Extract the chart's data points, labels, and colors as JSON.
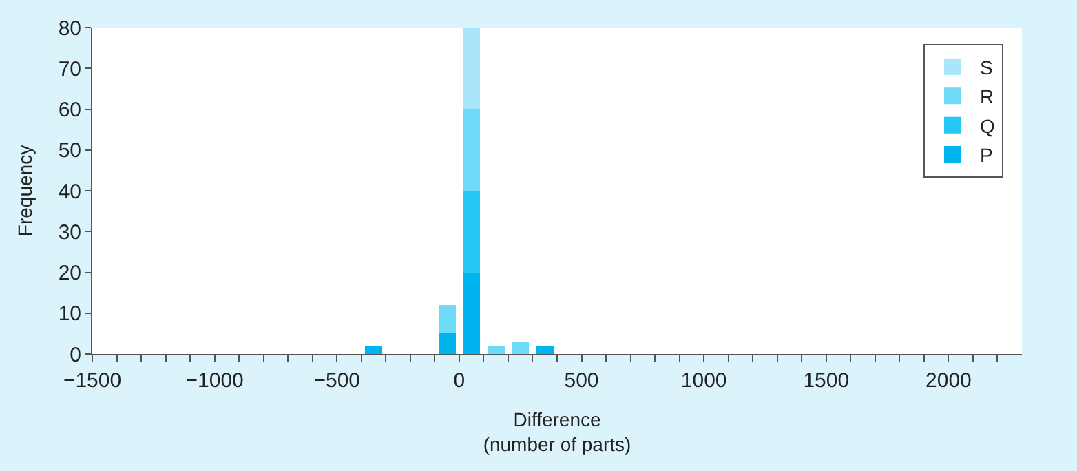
{
  "chart_data": {
    "type": "bar",
    "xlabel": "Difference\n(number of parts)",
    "ylabel": "Frequency",
    "x": [
      -350,
      -50,
      50,
      150,
      250,
      350
    ],
    "stacked": true,
    "series": [
      {
        "name": "P",
        "color": "#00b5ef",
        "values": [
          2,
          5,
          20,
          0,
          0,
          2
        ]
      },
      {
        "name": "Q",
        "color": "#25c8f5",
        "values": [
          0,
          0,
          20,
          0,
          0,
          0
        ]
      },
      {
        "name": "R",
        "color": "#6fdaf7",
        "values": [
          0,
          7,
          20,
          2,
          3,
          0
        ]
      },
      {
        "name": "S",
        "color": "#aae6f9",
        "values": [
          0,
          0,
          20,
          0,
          0,
          0
        ]
      }
    ],
    "xlim": [
      -1500,
      2300
    ],
    "ylim": [
      0,
      80
    ],
    "xticks": [
      {
        "value": -1500,
        "label": "−1500"
      },
      {
        "value": -1400,
        "label": null
      },
      {
        "value": -1300,
        "label": null
      },
      {
        "value": -1200,
        "label": null
      },
      {
        "value": -1100,
        "label": null
      },
      {
        "value": -1000,
        "label": "−1000"
      },
      {
        "value": -900,
        "label": null
      },
      {
        "value": -800,
        "label": null
      },
      {
        "value": -700,
        "label": null
      },
      {
        "value": -600,
        "label": null
      },
      {
        "value": -500,
        "label": "−500"
      },
      {
        "value": -400,
        "label": null
      },
      {
        "value": -300,
        "label": null
      },
      {
        "value": -200,
        "label": null
      },
      {
        "value": -100,
        "label": null
      },
      0,
      {
        "value": 100,
        "label": null
      },
      {
        "value": 200,
        "label": null
      },
      {
        "value": 300,
        "label": null
      },
      {
        "value": 400,
        "label": null
      },
      500,
      {
        "value": 600,
        "label": null
      },
      {
        "value": 700,
        "label": null
      },
      {
        "value": 800,
        "label": null
      },
      {
        "value": 900,
        "label": null
      },
      1000,
      {
        "value": 1100,
        "label": null
      },
      {
        "value": 1200,
        "label": null
      },
      {
        "value": 1300,
        "label": null
      },
      {
        "value": 1400,
        "label": null
      },
      1500,
      {
        "value": 1600,
        "label": null
      },
      {
        "value": 1700,
        "label": null
      },
      {
        "value": 1800,
        "label": null
      },
      {
        "value": 1900,
        "label": null
      },
      2000,
      {
        "value": 2100,
        "label": null
      },
      {
        "value": 2200,
        "label": null
      }
    ],
    "yticks": [
      0,
      10,
      20,
      30,
      40,
      50,
      60,
      70,
      80
    ],
    "legend": "top right"
  }
}
